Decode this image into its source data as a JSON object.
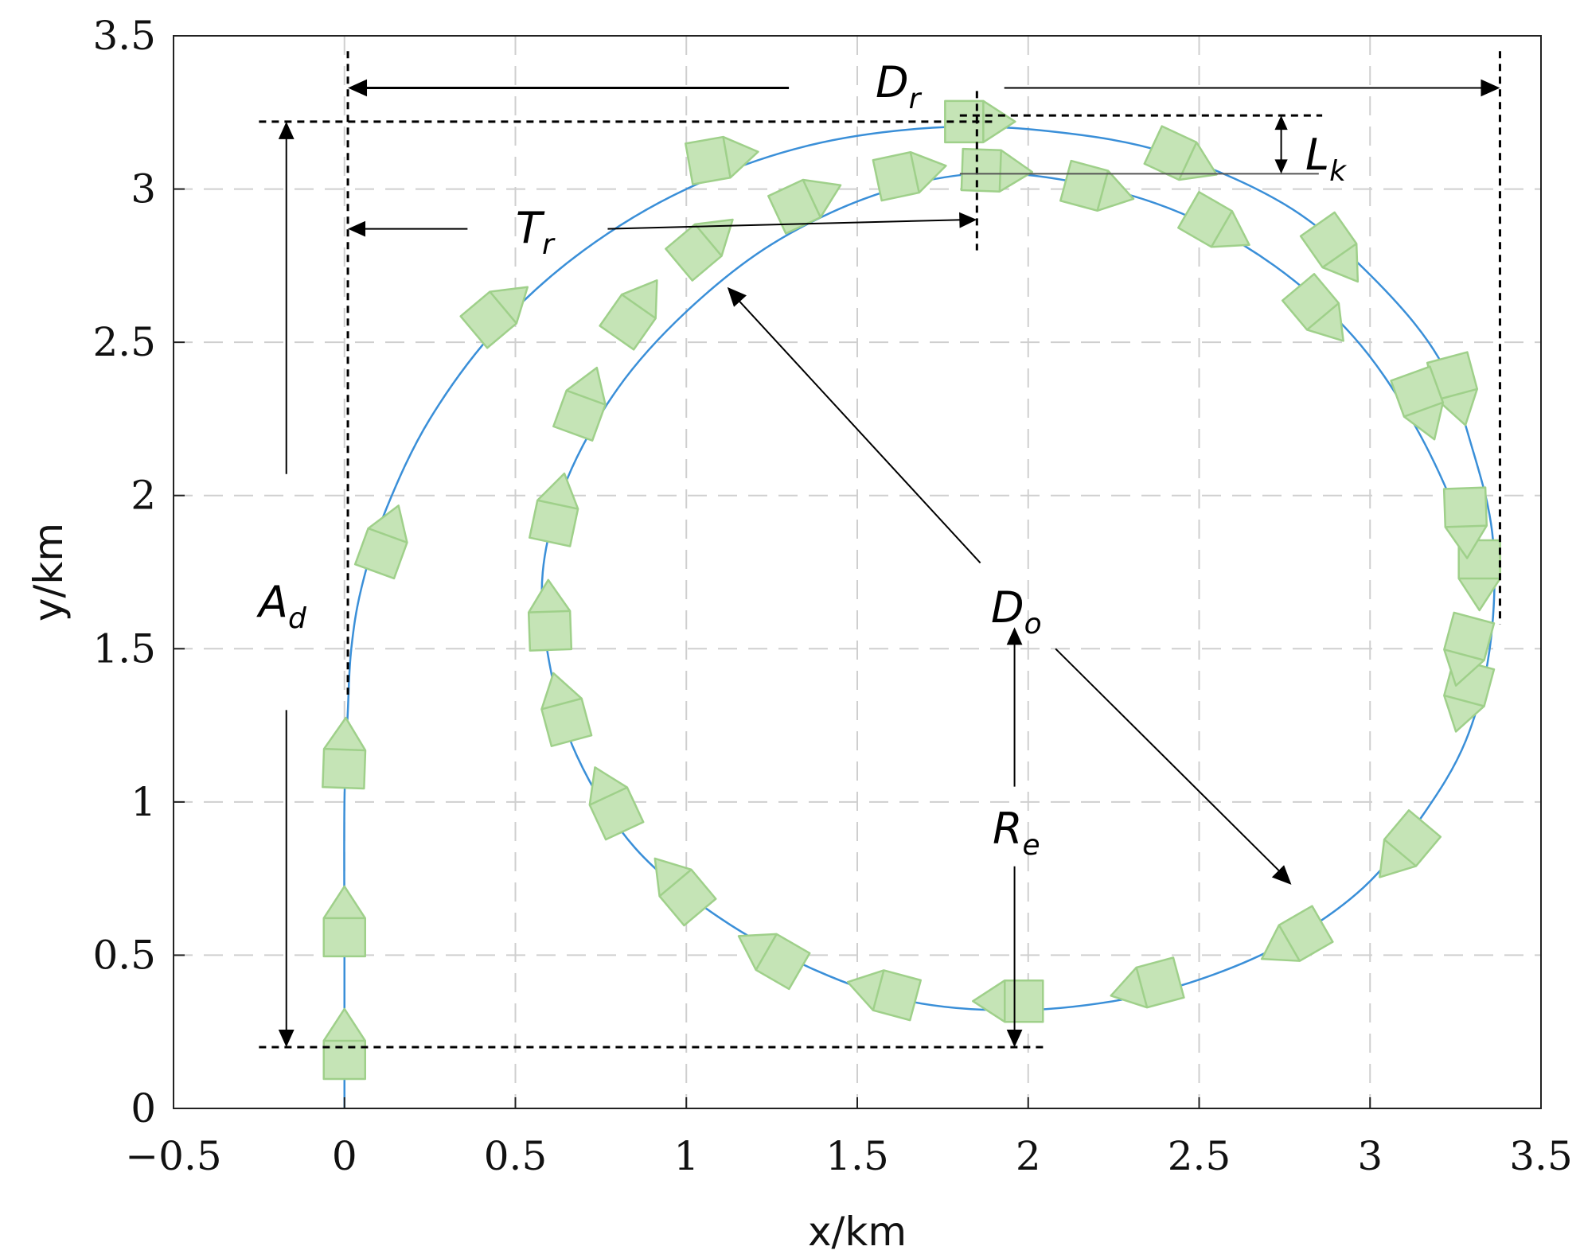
{
  "chart_data": {
    "type": "line",
    "xlabel": "x/km",
    "ylabel": "y/km",
    "xlim": [
      -0.5,
      3.5
    ],
    "ylim": [
      0,
      3.5
    ],
    "xticks": [
      -0.5,
      0,
      0.5,
      1,
      1.5,
      2,
      2.5,
      3,
      3.5
    ],
    "yticks": [
      0,
      0.5,
      1,
      1.5,
      2,
      2.5,
      3,
      3.5
    ],
    "xtick_labels": [
      "−0.5",
      "0",
      "0.5",
      "1",
      "1.5",
      "2",
      "2.5",
      "3",
      "3.5"
    ],
    "ytick_labels": [
      "0",
      "0.5",
      "1",
      "1.5",
      "2",
      "2.5",
      "3",
      "3.5"
    ],
    "grid": true,
    "colors": {
      "reference_path": "#3a8fd8",
      "ship": "#c5e4b6",
      "ship_edge": "#9fd08a"
    },
    "series": [
      {
        "x": [
          0,
          0,
          0,
          0.01,
          0.02,
          0.05,
          0.12,
          0.25,
          0.45,
          0.7,
          1.0,
          1.35,
          1.72,
          2.05,
          2.4,
          2.75,
          3.0,
          3.2,
          3.3,
          3.36,
          3.35,
          3.28,
          3.15,
          2.98,
          2.75,
          2.5,
          2.25,
          1.95,
          1.65,
          1.38,
          1.1,
          0.85,
          0.68,
          0.6,
          0.58,
          0.65,
          0.8,
          1.0,
          1.25,
          1.55,
          1.85,
          2.15,
          2.45,
          2.72,
          2.95,
          3.12,
          3.25,
          3.32
        ],
        "y": [
          0,
          0.5,
          1.0,
          1.3,
          1.5,
          1.7,
          1.95,
          2.25,
          2.55,
          2.8,
          3.0,
          3.14,
          3.2,
          3.19,
          3.12,
          2.95,
          2.72,
          2.45,
          2.15,
          1.85,
          1.5,
          1.2,
          0.95,
          0.72,
          0.54,
          0.42,
          0.35,
          0.32,
          0.35,
          0.45,
          0.62,
          0.85,
          1.15,
          1.45,
          1.75,
          2.05,
          2.35,
          2.6,
          2.82,
          2.98,
          3.05,
          3.02,
          2.92,
          2.75,
          2.52,
          2.25,
          1.95,
          1.7
        ]
      }
    ],
    "annotations": [
      {
        "main": "D",
        "sub": "r"
      },
      {
        "main": "L",
        "sub": "k"
      },
      {
        "main": "T",
        "sub": "r"
      },
      {
        "main": "A",
        "sub": "d"
      },
      {
        "main": "D",
        "sub": "o"
      },
      {
        "main": "R",
        "sub": "e"
      }
    ],
    "ship_markers": [
      [
        0,
        0.2,
        90
      ],
      [
        0,
        0.6,
        90
      ],
      [
        0,
        1.15,
        88
      ],
      [
        0.12,
        1.85,
        70
      ],
      [
        0.45,
        2.6,
        40
      ],
      [
        1.1,
        3.1,
        10
      ],
      [
        1.85,
        3.22,
        0
      ],
      [
        2.45,
        3.1,
        -25
      ],
      [
        2.9,
        2.8,
        -55
      ],
      [
        3.25,
        2.35,
        -75
      ],
      [
        3.32,
        1.75,
        -90
      ],
      [
        3.28,
        1.35,
        -105
      ],
      [
        3.1,
        0.85,
        -130
      ],
      [
        2.78,
        0.55,
        -150
      ],
      [
        2.35,
        0.4,
        -165
      ],
      [
        1.95,
        0.35,
        180
      ],
      [
        1.58,
        0.38,
        165
      ],
      [
        1.25,
        0.5,
        150
      ],
      [
        0.98,
        0.72,
        130
      ],
      [
        0.78,
        1.0,
        115
      ],
      [
        0.64,
        1.3,
        105
      ],
      [
        0.6,
        1.6,
        92
      ],
      [
        0.62,
        1.95,
        78
      ],
      [
        0.7,
        2.3,
        70
      ],
      [
        0.85,
        2.6,
        55
      ],
      [
        1.05,
        2.82,
        40
      ],
      [
        1.35,
        2.96,
        25
      ],
      [
        1.65,
        3.05,
        12
      ],
      [
        1.9,
        3.06,
        -2
      ],
      [
        2.2,
        3.0,
        -15
      ],
      [
        2.55,
        2.88,
        -30
      ],
      [
        2.85,
        2.6,
        -50
      ],
      [
        3.15,
        2.3,
        -70
      ],
      [
        3.28,
        1.92,
        -88
      ],
      [
        3.28,
        1.5,
        -105
      ]
    ]
  }
}
